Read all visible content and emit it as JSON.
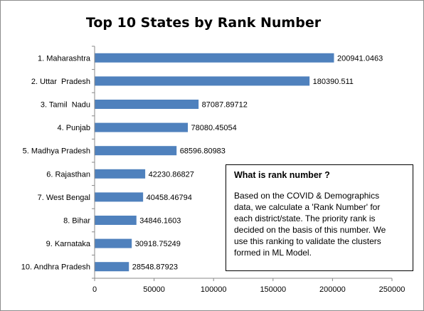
{
  "chart_data": {
    "type": "bar",
    "orientation": "horizontal",
    "title": "Top 10 States by Rank Number",
    "categories": [
      "1. Maharashtra",
      "2. Uttar  Pradesh",
      "3. Tamil  Nadu",
      "4. Punjab",
      "5. Madhya Pradesh",
      "6. Rajasthan",
      "7. West Bengal",
      "8. Bihar",
      "9. Karnataka",
      "10. Andhra Pradesh"
    ],
    "values": [
      200941.0463,
      180390.511,
      87087.89712,
      78080.45054,
      68596.80983,
      42230.86827,
      40458.46794,
      34846.1603,
      30918.75249,
      28548.87923
    ],
    "value_labels": [
      "200941.0463",
      "180390.511",
      "87087.89712",
      "78080.45054",
      "68596.80983",
      "42230.86827",
      "40458.46794",
      "34846.1603",
      "30918.75249",
      "28548.87923"
    ],
    "xlim": [
      0,
      250000
    ],
    "x_ticks": [
      0,
      50000,
      100000,
      150000,
      200000,
      250000
    ],
    "x_tick_labels": [
      "0",
      "50000",
      "100000",
      "150000",
      "200000",
      "250000"
    ],
    "bar_color": "#4f81bd",
    "grid": false,
    "legend": false
  },
  "note": {
    "heading": "What is rank number ?",
    "lines": [
      "Based on the COVID & Demographics",
      "data, we calculate a 'Rank Number' for",
      "each district/state. The priority rank is",
      "decided on the basis of this number. We",
      "use this ranking to validate the clusters",
      "formed in ML Model."
    ]
  }
}
